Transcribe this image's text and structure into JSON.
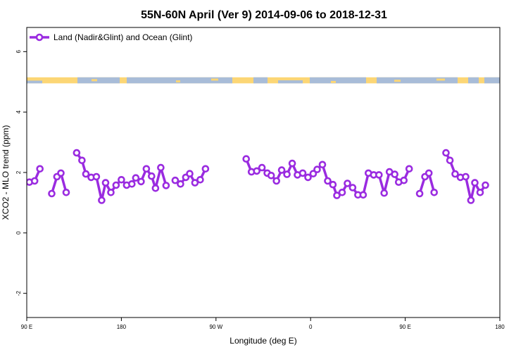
{
  "chart_data": {
    "type": "line",
    "title": "55N-60N April (Ver 9)   2014-09-06 to 2018-12-31",
    "xlabel": "Longitude (deg E)",
    "ylabel": "XCO2 - MLO trend (ppm)",
    "xlim": [
      90,
      450
    ],
    "ylim": [
      -2.8,
      6.8
    ],
    "x_ticks": [
      {
        "value": 90,
        "label": "90 E"
      },
      {
        "value": 162,
        "label": "180"
      },
      {
        "value": 234,
        "label": "90 W"
      },
      {
        "value": 306,
        "label": "0"
      },
      {
        "value": 378,
        "label": "90 E"
      },
      {
        "value": 450,
        "label": "180"
      }
    ],
    "y_ticks": [
      -2,
      0,
      2,
      4,
      6
    ],
    "grid": false,
    "legend_position": "top-left",
    "land_band": {
      "y_range": [
        4.95,
        5.15
      ],
      "ocean_color": "#a8bcd8",
      "land_color": "#fcd675"
    },
    "series": [
      {
        "name": "Land (Nadir&Glint) and Ocean (Glint)",
        "color": "#9a2be0",
        "segments": [
          [
            {
              "x": 92,
              "y": 1.68
            },
            {
              "x": 96,
              "y": 1.72
            },
            {
              "x": 100,
              "y": 2.12
            }
          ],
          [
            {
              "x": 109,
              "y": 1.3
            },
            {
              "x": 113,
              "y": 1.86
            },
            {
              "x": 116,
              "y": 1.98
            },
            {
              "x": 120,
              "y": 1.34
            }
          ],
          [
            {
              "x": 128,
              "y": 2.65
            },
            {
              "x": 132,
              "y": 2.4
            },
            {
              "x": 135,
              "y": 1.95
            },
            {
              "x": 139,
              "y": 1.84
            },
            {
              "x": 143,
              "y": 1.86
            },
            {
              "x": 147,
              "y": 1.08
            },
            {
              "x": 150,
              "y": 1.66
            },
            {
              "x": 154,
              "y": 1.34
            },
            {
              "x": 158,
              "y": 1.58
            },
            {
              "x": 162,
              "y": 1.76
            },
            {
              "x": 166,
              "y": 1.58
            },
            {
              "x": 170,
              "y": 1.62
            },
            {
              "x": 173,
              "y": 1.82
            },
            {
              "x": 177,
              "y": 1.7
            },
            {
              "x": 181,
              "y": 2.12
            },
            {
              "x": 185,
              "y": 1.88
            },
            {
              "x": 188,
              "y": 1.48
            },
            {
              "x": 192,
              "y": 2.16
            },
            {
              "x": 196,
              "y": 1.57
            }
          ],
          [
            {
              "x": 203,
              "y": 1.74
            },
            {
              "x": 207,
              "y": 1.62
            },
            {
              "x": 211,
              "y": 1.84
            },
            {
              "x": 214,
              "y": 1.96
            },
            {
              "x": 218,
              "y": 1.66
            },
            {
              "x": 222,
              "y": 1.76
            },
            {
              "x": 226,
              "y": 2.12
            }
          ],
          [
            {
              "x": 257,
              "y": 2.45
            },
            {
              "x": 261,
              "y": 2.02
            },
            {
              "x": 265,
              "y": 2.05
            },
            {
              "x": 269,
              "y": 2.16
            },
            {
              "x": 273,
              "y": 1.98
            },
            {
              "x": 276,
              "y": 1.9
            },
            {
              "x": 280,
              "y": 1.72
            },
            {
              "x": 284,
              "y": 2.08
            },
            {
              "x": 288,
              "y": 1.94
            },
            {
              "x": 292,
              "y": 2.3
            },
            {
              "x": 296,
              "y": 1.92
            },
            {
              "x": 300,
              "y": 1.98
            },
            {
              "x": 304,
              "y": 1.84
            },
            {
              "x": 308,
              "y": 1.96
            },
            {
              "x": 311,
              "y": 2.1
            },
            {
              "x": 315,
              "y": 2.26
            },
            {
              "x": 319,
              "y": 1.72
            },
            {
              "x": 323,
              "y": 1.6
            },
            {
              "x": 326,
              "y": 1.24
            },
            {
              "x": 330,
              "y": 1.34
            },
            {
              "x": 334,
              "y": 1.64
            },
            {
              "x": 338,
              "y": 1.5
            },
            {
              "x": 342,
              "y": 1.26
            },
            {
              "x": 346,
              "y": 1.26
            },
            {
              "x": 350,
              "y": 1.98
            },
            {
              "x": 354,
              "y": 1.92
            },
            {
              "x": 358,
              "y": 1.92
            },
            {
              "x": 362,
              "y": 1.32
            },
            {
              "x": 366,
              "y": 2.02
            },
            {
              "x": 370,
              "y": 1.94
            },
            {
              "x": 373,
              "y": 1.68
            },
            {
              "x": 377,
              "y": 1.74
            },
            {
              "x": 381,
              "y": 2.12
            }
          ],
          [
            {
              "x": 389,
              "y": 1.3
            },
            {
              "x": 393,
              "y": 1.86
            },
            {
              "x": 396,
              "y": 1.98
            },
            {
              "x": 400,
              "y": 1.34
            }
          ],
          [
            {
              "x": 409,
              "y": 2.65
            },
            {
              "x": 412,
              "y": 2.4
            },
            {
              "x": 416,
              "y": 1.95
            },
            {
              "x": 420,
              "y": 1.84
            },
            {
              "x": 424,
              "y": 1.86
            },
            {
              "x": 428,
              "y": 1.08
            },
            {
              "x": 431,
              "y": 1.66
            },
            {
              "x": 435,
              "y": 1.34
            },
            {
              "x": 439,
              "y": 1.58
            }
          ]
        ]
      }
    ]
  }
}
